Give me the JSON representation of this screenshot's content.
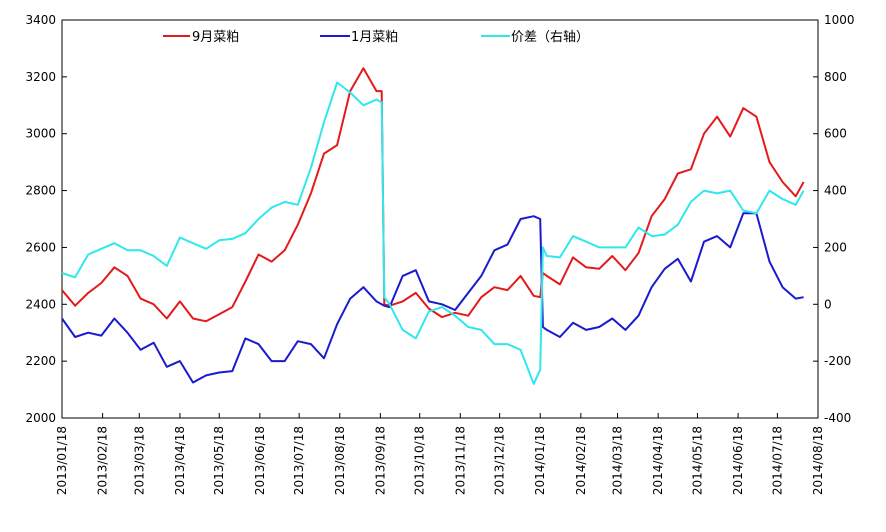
{
  "chart_data": {
    "type": "line",
    "title": "",
    "xlabel": "",
    "ylabel": "",
    "y2label": "",
    "xlim": [
      "2013/01/18",
      "2014/08/18"
    ],
    "ylim": [
      2000,
      3400
    ],
    "y2lim": [
      -400,
      1000
    ],
    "grid": false,
    "legend_position": "top",
    "x_tick_labels": [
      "2013/01/18",
      "2013/02/18",
      "2013/03/18",
      "2013/04/18",
      "2013/05/18",
      "2013/06/18",
      "2013/07/18",
      "2013/08/18",
      "2013/09/18",
      "2013/10/18",
      "2013/11/18",
      "2013/12/18",
      "2014/01/18",
      "2014/02/18",
      "2014/03/18",
      "2014/04/18",
      "2014/05/18",
      "2014/06/18",
      "2014/07/18",
      "2014/08/18"
    ],
    "y_tick_labels": [
      "2000",
      "2200",
      "2400",
      "2600",
      "2800",
      "3000",
      "3200",
      "3400"
    ],
    "y2_tick_labels": [
      "-400",
      "-200",
      "0",
      "200",
      "400",
      "600",
      "800",
      "1000"
    ],
    "x": [
      "2013-01-18",
      "2013-01-28",
      "2013-02-07",
      "2013-02-17",
      "2013-02-27",
      "2013-03-09",
      "2013-03-19",
      "2013-03-29",
      "2013-04-08",
      "2013-04-18",
      "2013-04-28",
      "2013-05-08",
      "2013-05-18",
      "2013-05-28",
      "2013-06-07",
      "2013-06-17",
      "2013-06-27",
      "2013-07-07",
      "2013-07-17",
      "2013-07-27",
      "2013-08-06",
      "2013-08-16",
      "2013-08-26",
      "2013-09-05",
      "2013-09-15",
      "2013-09-19",
      "2013-09-21",
      "2013-09-25",
      "2013-10-05",
      "2013-10-15",
      "2013-10-25",
      "2013-11-04",
      "2013-11-14",
      "2013-11-24",
      "2013-12-04",
      "2013-12-14",
      "2013-12-24",
      "2014-01-03",
      "2014-01-13",
      "2014-01-18",
      "2014-01-20",
      "2014-01-23",
      "2014-02-02",
      "2014-02-12",
      "2014-02-22",
      "2014-03-04",
      "2014-03-14",
      "2014-03-24",
      "2014-04-03",
      "2014-04-13",
      "2014-04-23",
      "2014-05-03",
      "2014-05-13",
      "2014-05-23",
      "2014-06-02",
      "2014-06-12",
      "2014-06-22",
      "2014-07-02",
      "2014-07-12",
      "2014-07-22",
      "2014-08-01",
      "2014-08-07"
    ],
    "series": [
      {
        "name": "9月菜粕",
        "axis": "left",
        "color": "#e41a1a",
        "values": [
          2450,
          2395,
          2440,
          2475,
          2530,
          2500,
          2420,
          2400,
          2350,
          2410,
          2350,
          2340,
          2365,
          2390,
          2480,
          2575,
          2550,
          2590,
          2680,
          2790,
          2930,
          2960,
          3150,
          3230,
          3150,
          3150,
          2400,
          2395,
          2410,
          2440,
          2385,
          2355,
          2370,
          2360,
          2425,
          2460,
          2450,
          2500,
          2430,
          2425,
          2510,
          2500,
          2470,
          2565,
          2530,
          2525,
          2570,
          2520,
          2580,
          2710,
          2770,
          2860,
          2875,
          3000,
          3060,
          2990,
          3090,
          3060,
          2900,
          2830,
          2780,
          2830
        ]
      },
      {
        "name": "1月菜粕",
        "axis": "left",
        "color": "#1a1ad0",
        "values": [
          2350,
          2285,
          2300,
          2290,
          2350,
          2300,
          2240,
          2265,
          2180,
          2200,
          2125,
          2150,
          2160,
          2165,
          2280,
          2260,
          2200,
          2200,
          2270,
          2260,
          2210,
          2330,
          2420,
          2460,
          2410,
          2400,
          2395,
          2390,
          2500,
          2520,
          2410,
          2400,
          2380,
          2440,
          2500,
          2590,
          2610,
          2700,
          2710,
          2700,
          2320,
          2310,
          2285,
          2335,
          2310,
          2320,
          2350,
          2310,
          2360,
          2460,
          2525,
          2560,
          2480,
          2620,
          2640,
          2600,
          2720,
          2720,
          2550,
          2460,
          2420,
          2425
        ]
      },
      {
        "name": "价差（右轴）",
        "axis": "right",
        "color": "#2ee8ee",
        "values": [
          110,
          95,
          175,
          195,
          215,
          190,
          190,
          170,
          135,
          235,
          215,
          195,
          225,
          230,
          250,
          300,
          340,
          360,
          350,
          480,
          640,
          780,
          745,
          700,
          720,
          710,
          25,
          0,
          -90,
          -120,
          -25,
          -10,
          -40,
          -80,
          -90,
          -140,
          -140,
          -160,
          -280,
          -230,
          200,
          170,
          165,
          240,
          220,
          200,
          200,
          200,
          270,
          240,
          245,
          280,
          360,
          400,
          390,
          400,
          330,
          320,
          400,
          370,
          350,
          400
        ]
      }
    ]
  }
}
